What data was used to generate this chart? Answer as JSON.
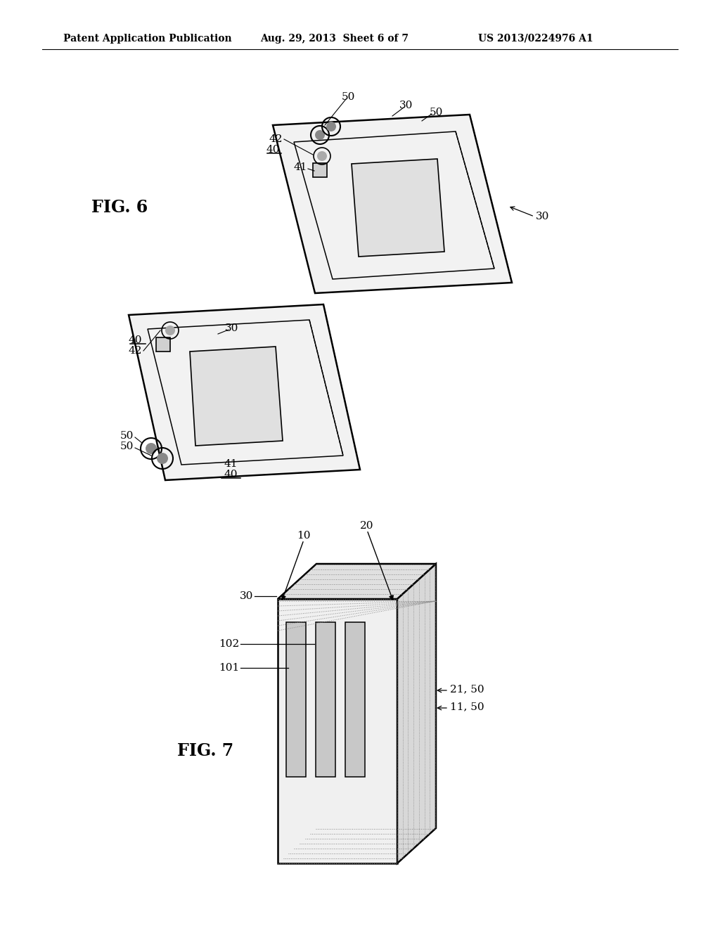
{
  "bg_color": "#ffffff",
  "header_left": "Patent Application Publication",
  "header_mid": "Aug. 29, 2013  Sheet 6 of 7",
  "header_right": "US 2013/0224976 A1",
  "fig6_label": "FIG. 6",
  "fig7_label": "FIG. 7",
  "line_color": "#000000",
  "light_gray": "#cccccc",
  "mid_gray": "#999999",
  "dark_gray": "#555555"
}
